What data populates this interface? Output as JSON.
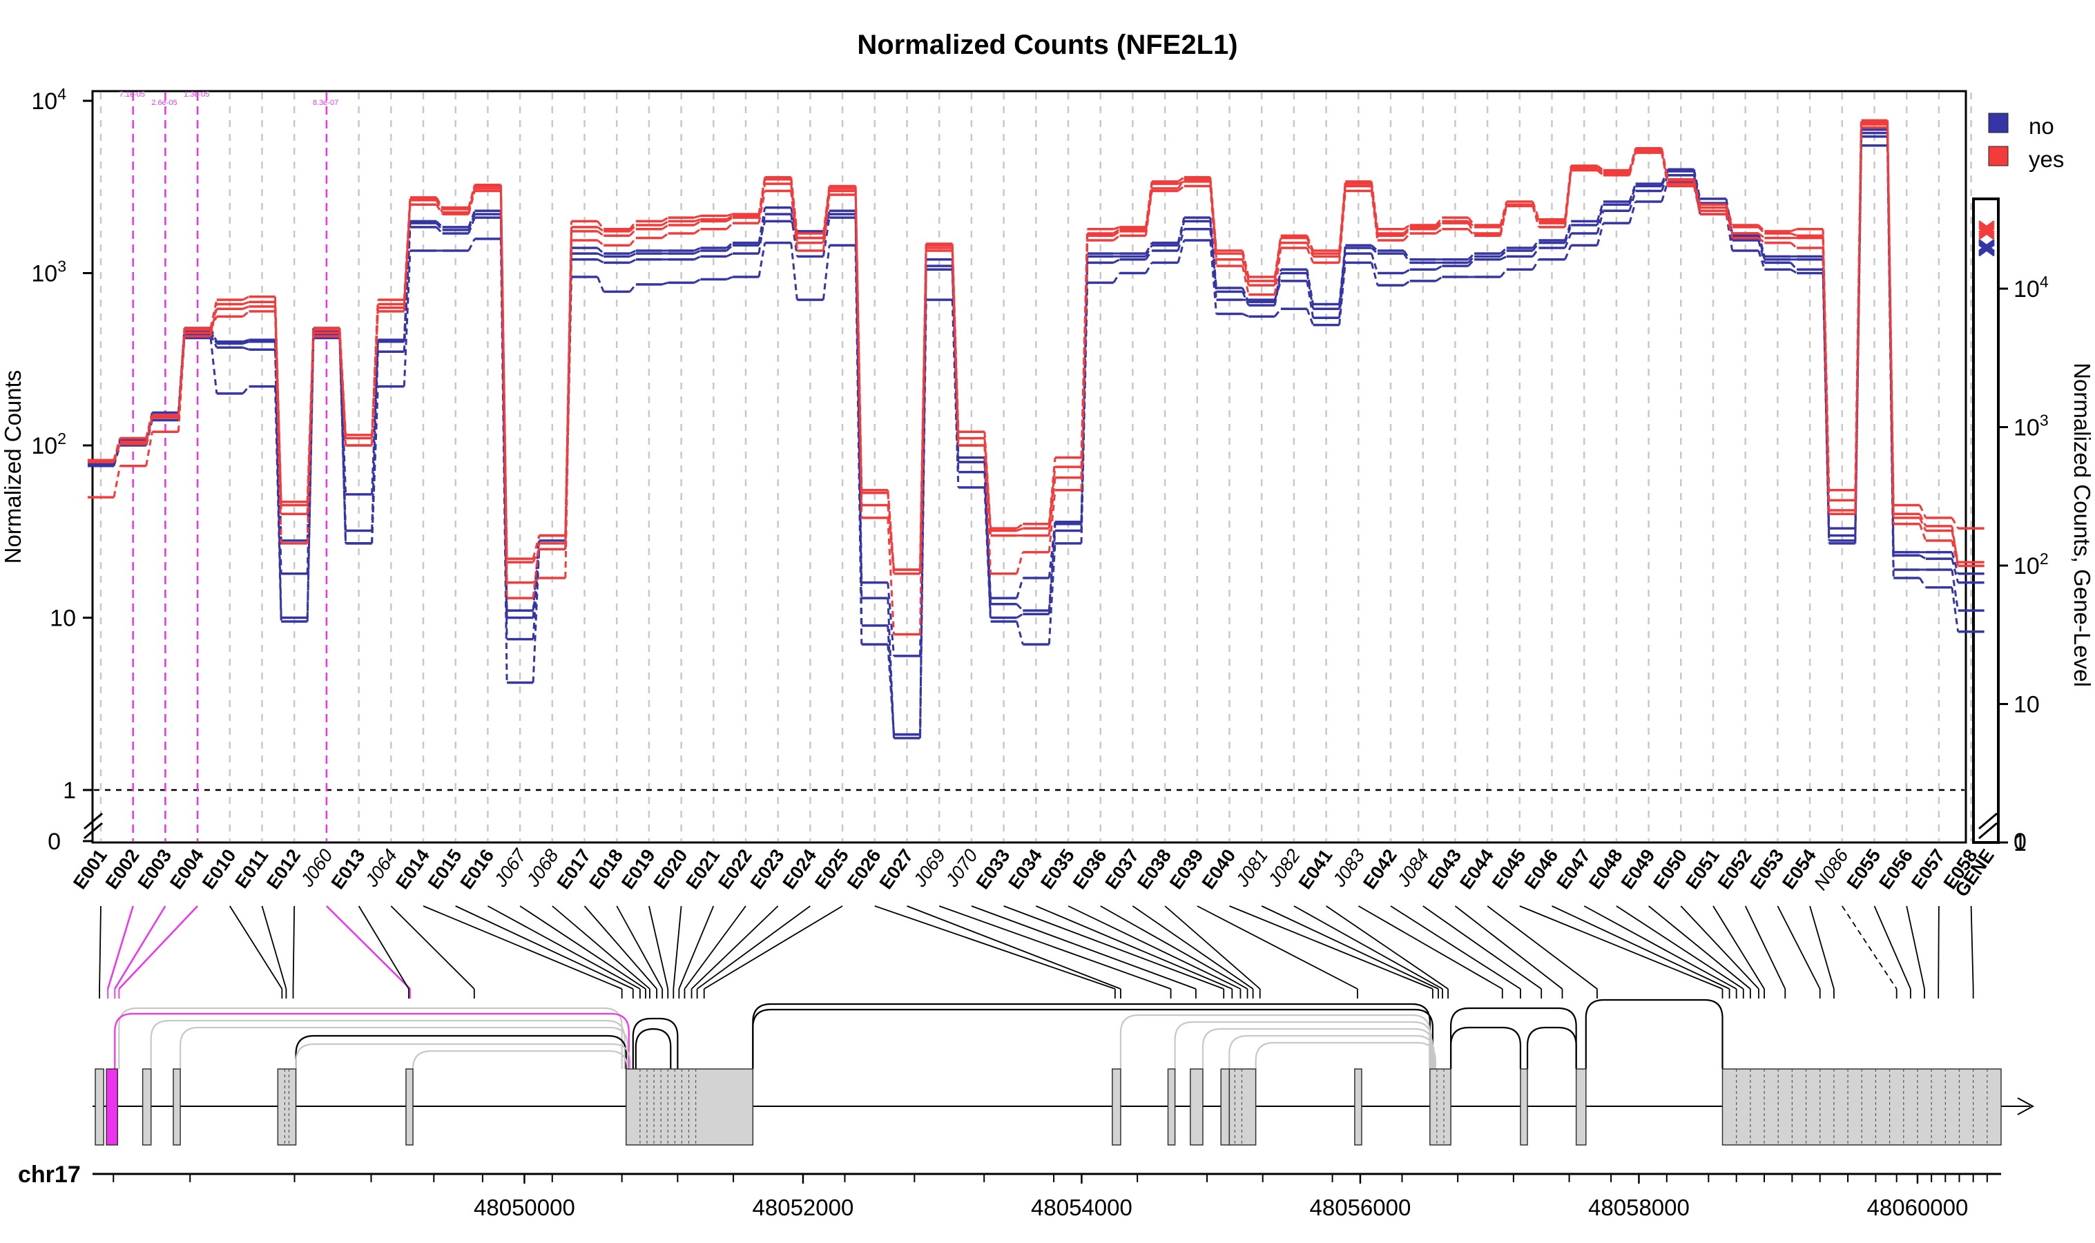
{
  "chart_data": {
    "type": "line",
    "title": "Normalized Counts (NFE2L1)",
    "ylabel": "Normalized Counts",
    "ylabel_right": "Normalized Counts, Gene-Level",
    "y_scale": "log",
    "ylim": [
      1,
      10000
    ],
    "y_ticks": [
      {
        "value": 1,
        "label": "1"
      },
      {
        "value": 10,
        "label": "10"
      },
      {
        "value": 100,
        "label": "10",
        "sup": "2"
      },
      {
        "value": 1000,
        "label": "10",
        "sup": "3"
      },
      {
        "value": 10000,
        "label": "10",
        "sup": "4"
      }
    ],
    "y_zero_label": "0",
    "y_ticks_right": [
      {
        "value": 1,
        "label": "1"
      },
      {
        "value": 10,
        "label": "10"
      },
      {
        "value": 100,
        "label": "10",
        "sup": "2"
      },
      {
        "value": 1000,
        "label": "10",
        "sup": "3"
      },
      {
        "value": 10000,
        "label": "10",
        "sup": "4"
      }
    ],
    "grid": true,
    "legend": {
      "position": "top-right",
      "entries": [
        {
          "label": "no",
          "color": "#3535a5"
        },
        {
          "label": "yes",
          "color": "#f23c3c"
        }
      ]
    },
    "features": [
      "E001",
      "E002",
      "E003",
      "E004",
      "E010",
      "E011",
      "E012",
      "J060",
      "E013",
      "J064",
      "E014",
      "E015",
      "E016",
      "J067",
      "J068",
      "E017",
      "E018",
      "E019",
      "E020",
      "E021",
      "E022",
      "E023",
      "E024",
      "E025",
      "E026",
      "E027",
      "J069",
      "J070",
      "E033",
      "E034",
      "E035",
      "E036",
      "E037",
      "E038",
      "E039",
      "E040",
      "J081",
      "J082",
      "E041",
      "J083",
      "E042",
      "J084",
      "E043",
      "E044",
      "E045",
      "E046",
      "E047",
      "E048",
      "E049",
      "E050",
      "E051",
      "E052",
      "E053",
      "E054",
      "N086",
      "E055",
      "E056",
      "E057",
      "E058"
    ],
    "junction_features": [
      "J060",
      "J064",
      "J067",
      "J068",
      "J069",
      "J070",
      "J081",
      "J082",
      "J083",
      "J084",
      "N086"
    ],
    "significant_features": [
      "E002",
      "E003",
      "E004",
      "J060"
    ],
    "pvalue_labels": [
      "7.1e-05",
      "2.6e-05",
      "1.3e-05",
      "8.3e-07"
    ],
    "gene_label": "GENE",
    "series": [
      {
        "name": "no",
        "group": "no",
        "values": [
          80,
          108,
          150,
          460,
          390,
          400,
          18,
          460,
          52,
          400,
          1950,
          1780,
          2200,
          7.5,
          25,
          1300,
          1250,
          1300,
          1300,
          1350,
          1450,
          2000,
          1750,
          2200,
          9,
          2.1,
          1100,
          70,
          10,
          10.5,
          32,
          1250,
          1250,
          1450,
          2000,
          780,
          650,
          1000,
          620,
          1400,
          1300,
          1150,
          1150,
          1250,
          1350,
          1500,
          1900,
          2500,
          3200,
          3900,
          2550,
          1650,
          1200,
          1200,
          28,
          6500,
          23,
          22,
          16
        ],
        "gene": 20000
      },
      {
        "name": "no",
        "group": "no",
        "values": [
          78,
          105,
          145,
          440,
          370,
          360,
          10,
          440,
          27,
          350,
          1850,
          1700,
          2100,
          10,
          28,
          1200,
          1150,
          1200,
          1200,
          1250,
          1300,
          2200,
          1250,
          2100,
          13,
          2,
          1050,
          80,
          12,
          11,
          35,
          1150,
          1200,
          1350,
          1800,
          700,
          700,
          900,
          550,
          1300,
          1000,
          1050,
          1100,
          1200,
          1250,
          1400,
          1700,
          2300,
          3000,
          3700,
          2500,
          1550,
          1150,
          1050,
          30,
          6200,
          19,
          19,
          11
        ],
        "gene": 19500
      },
      {
        "name": "no",
        "group": "no",
        "values": [
          76,
          100,
          140,
          420,
          200,
          220,
          9.5,
          420,
          27,
          220,
          1350,
          1350,
          1580,
          4.2,
          25,
          950,
          780,
          860,
          880,
          920,
          950,
          1500,
          700,
          1450,
          7,
          2.1,
          700,
          57,
          9.5,
          7,
          27,
          880,
          1000,
          1150,
          1550,
          580,
          560,
          620,
          500,
          1150,
          850,
          900,
          950,
          950,
          1050,
          1200,
          1450,
          1950,
          2600,
          3400,
          2200,
          1350,
          1050,
          1000,
          27,
          5500,
          17,
          15,
          8.3
        ],
        "gene": 19000
      },
      {
        "name": "no",
        "group": "no",
        "values": [
          82,
          110,
          155,
          480,
          400,
          410,
          28,
          480,
          32,
          410,
          2000,
          1850,
          2300,
          11,
          30,
          1400,
          1300,
          1350,
          1350,
          1400,
          1500,
          2400,
          1600,
          2300,
          16,
          6,
          1200,
          85,
          13,
          17,
          36,
          1300,
          1300,
          1500,
          2100,
          820,
          680,
          1050,
          660,
          1450,
          1350,
          1200,
          1200,
          1300,
          1400,
          1550,
          2000,
          2600,
          3300,
          4000,
          2700,
          1700,
          1250,
          1250,
          33,
          6800,
          24,
          24,
          18
        ],
        "gene": 20500
      },
      {
        "name": "yes",
        "group": "yes",
        "values": [
          82,
          105,
          148,
          470,
          560,
          600,
          27,
          470,
          100,
          600,
          2650,
          2250,
          3100,
          21,
          25,
          1750,
          1650,
          1800,
          1900,
          2000,
          2100,
          3300,
          1500,
          3000,
          45,
          18,
          1400,
          100,
          30,
          30,
          65,
          1650,
          1750,
          3100,
          3500,
          1200,
          850,
          1500,
          1250,
          3200,
          1650,
          1800,
          1950,
          1700,
          2500,
          1950,
          4000,
          3750,
          5000,
          3300,
          2300,
          1700,
          1600,
          1600,
          48,
          7500,
          40,
          34,
          20
        ],
        "gene": 26000
      },
      {
        "name": "yes",
        "group": "yes",
        "values": [
          80,
          102,
          145,
          450,
          620,
          640,
          40,
          450,
          110,
          630,
          2700,
          2350,
          3200,
          13,
          27,
          1850,
          1750,
          1900,
          2000,
          2050,
          2150,
          3500,
          1600,
          3100,
          53,
          19,
          1450,
          110,
          32,
          33,
          75,
          1700,
          1800,
          3300,
          3400,
          1300,
          900,
          1600,
          1300,
          3300,
          1700,
          1850,
          2000,
          1850,
          2500,
          2000,
          4100,
          3850,
          5200,
          3450,
          2400,
          1850,
          1700,
          1650,
          42,
          7300,
          38,
          32,
          21
        ],
        "gene": 27000
      },
      {
        "name": "yes",
        "group": "yes",
        "values": [
          50,
          76,
          120,
          430,
          660,
          680,
          45,
          430,
          100,
          660,
          2500,
          2200,
          3000,
          16,
          17,
          1550,
          1450,
          1600,
          1700,
          1800,
          1950,
          3000,
          1350,
          2850,
          38,
          8,
          1350,
          100,
          18,
          24,
          55,
          1550,
          1650,
          3000,
          3200,
          1100,
          750,
          1400,
          1150,
          3000,
          1550,
          1700,
          1800,
          1650,
          2450,
          1850,
          3950,
          3700,
          5100,
          3200,
          2200,
          1600,
          1500,
          1400,
          40,
          7000,
          35,
          28,
          20
        ],
        "gene": 25000
      },
      {
        "name": "yes",
        "group": "yes",
        "values": [
          82,
          110,
          150,
          480,
          700,
          730,
          47,
          480,
          115,
          700,
          2750,
          2400,
          3250,
          22,
          30,
          2000,
          1800,
          2000,
          2100,
          2150,
          2200,
          3600,
          1700,
          3200,
          55,
          19,
          1480,
          120,
          33,
          35,
          85,
          1800,
          1850,
          3400,
          3600,
          1350,
          950,
          1650,
          1350,
          3400,
          1800,
          1900,
          2100,
          1900,
          2600,
          2050,
          4200,
          3950,
          5300,
          3500,
          2500,
          1900,
          1750,
          1800,
          55,
          7700,
          45,
          38,
          33
        ],
        "gene": 28000
      }
    ],
    "genomic_axis": {
      "chromosome_label": "chr17",
      "range": [
        48046900,
        48060600
      ],
      "ticks": [
        48050000,
        48052000,
        48054000,
        48056000,
        48058000,
        48060000
      ],
      "tick_labels": [
        "48050000",
        "48052000",
        "48054000",
        "48056000",
        "48058000",
        "48060000"
      ]
    },
    "exon_blocks": [
      [
        48046920,
        48046980
      ],
      [
        48047000,
        48047080
      ],
      [
        48047260,
        48047320
      ],
      [
        48047480,
        48047530
      ],
      [
        48048230,
        48048360
      ],
      [
        48049150,
        48049200
      ],
      [
        48050730,
        48051640
      ],
      [
        48054220,
        48054280
      ],
      [
        48054620,
        48054670
      ],
      [
        48054780,
        48054870
      ],
      [
        48055000,
        48055060
      ],
      [
        48055060,
        48055250
      ],
      [
        48055960,
        48056010
      ],
      [
        48056500,
        48056650
      ],
      [
        48057150,
        48057200
      ],
      [
        48057550,
        48057620
      ],
      [
        48058600,
        48060600
      ]
    ]
  },
  "colors": {
    "no": "#3535a5",
    "yes": "#f23c3c",
    "significant": "#ee33ee",
    "grid": "#c8c8c8",
    "exon": "#d3d3d3",
    "junction_lines": "#c8c8c8"
  }
}
